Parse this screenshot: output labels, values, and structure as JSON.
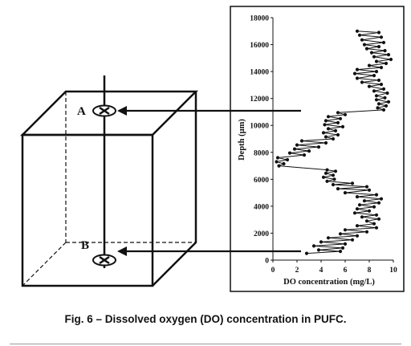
{
  "caption": "Fig. 6 – Dissolved oxygen (DO) concentration in PUFC.",
  "diagram": {
    "point_a": "A",
    "point_b": "B"
  },
  "chart_data": {
    "type": "line",
    "title": "",
    "xlabel": "DO concentration (mg/L)",
    "ylabel": "Depth (µm)",
    "xlim": [
      0,
      10
    ],
    "ylim": [
      0,
      18000
    ],
    "x_ticks": [
      0,
      2,
      4,
      6,
      8,
      10
    ],
    "y_ticks": [
      0,
      2000,
      4000,
      6000,
      8000,
      10000,
      12000,
      14000,
      16000,
      18000
    ],
    "grid": false,
    "legend": "none",
    "series": [
      {
        "points": [
          [
            7.0,
            17000
          ],
          [
            8.8,
            16900
          ],
          [
            7.2,
            16700
          ],
          [
            9.0,
            16550
          ],
          [
            7.4,
            16350
          ],
          [
            9.2,
            16150
          ],
          [
            7.6,
            16000
          ],
          [
            8.8,
            15850
          ],
          [
            7.8,
            15700
          ],
          [
            9.3,
            15550
          ],
          [
            8.2,
            15400
          ],
          [
            9.6,
            15250
          ],
          [
            8.4,
            15100
          ],
          [
            9.8,
            14900
          ],
          [
            8.6,
            14750
          ],
          [
            9.4,
            14600
          ],
          [
            8.0,
            14450
          ],
          [
            9.0,
            14300
          ],
          [
            7.0,
            14150
          ],
          [
            8.6,
            14000
          ],
          [
            6.8,
            13850
          ],
          [
            8.4,
            13700
          ],
          [
            7.0,
            13500
          ],
          [
            8.8,
            13350
          ],
          [
            7.4,
            13200
          ],
          [
            9.0,
            13050
          ],
          [
            8.0,
            12900
          ],
          [
            9.2,
            12700
          ],
          [
            8.4,
            12550
          ],
          [
            9.5,
            12400
          ],
          [
            8.6,
            12200
          ],
          [
            9.3,
            12050
          ],
          [
            8.6,
            11900
          ],
          [
            9.6,
            11750
          ],
          [
            8.8,
            11600
          ],
          [
            9.4,
            11450
          ],
          [
            8.7,
            11300
          ],
          [
            9.2,
            11150
          ],
          [
            5.4,
            10950
          ],
          [
            6.0,
            10800
          ],
          [
            4.6,
            10650
          ],
          [
            5.6,
            10500
          ],
          [
            4.4,
            10350
          ],
          [
            5.4,
            10200
          ],
          [
            4.3,
            10050
          ],
          [
            5.8,
            9900
          ],
          [
            4.6,
            9750
          ],
          [
            5.2,
            9600
          ],
          [
            4.2,
            9450
          ],
          [
            5.4,
            9300
          ],
          [
            4.4,
            9150
          ],
          [
            5.0,
            9000
          ],
          [
            2.4,
            8850
          ],
          [
            4.4,
            8700
          ],
          [
            2.0,
            8550
          ],
          [
            3.8,
            8400
          ],
          [
            1.8,
            8250
          ],
          [
            3.0,
            8100
          ],
          [
            1.4,
            7950
          ],
          [
            2.6,
            7800
          ],
          [
            0.4,
            7600
          ],
          [
            1.2,
            7450
          ],
          [
            0.3,
            7300
          ],
          [
            0.9,
            7150
          ],
          [
            0.5,
            7000
          ],
          [
            4.5,
            6700
          ],
          [
            5.2,
            6600
          ],
          [
            4.4,
            6450
          ],
          [
            5.0,
            6300
          ],
          [
            4.2,
            6150
          ],
          [
            5.1,
            6000
          ],
          [
            4.5,
            5850
          ],
          [
            6.6,
            5700
          ],
          [
            5.0,
            5600
          ],
          [
            7.8,
            5450
          ],
          [
            5.4,
            5300
          ],
          [
            8.0,
            5200
          ],
          [
            6.0,
            5000
          ],
          [
            8.6,
            4850
          ],
          [
            7.0,
            4700
          ],
          [
            9.0,
            4550
          ],
          [
            7.6,
            4400
          ],
          [
            8.8,
            4250
          ],
          [
            7.2,
            4100
          ],
          [
            8.4,
            3950
          ],
          [
            7.0,
            3800
          ],
          [
            8.0,
            3650
          ],
          [
            6.8,
            3500
          ],
          [
            8.6,
            3350
          ],
          [
            7.4,
            3200
          ],
          [
            8.8,
            3050
          ],
          [
            7.8,
            2900
          ],
          [
            8.4,
            2700
          ],
          [
            7.0,
            2550
          ],
          [
            8.6,
            2400
          ],
          [
            6.0,
            2250
          ],
          [
            7.8,
            2100
          ],
          [
            5.6,
            1950
          ],
          [
            7.0,
            1800
          ],
          [
            4.6,
            1650
          ],
          [
            6.6,
            1500
          ],
          [
            4.0,
            1350
          ],
          [
            6.0,
            1200
          ],
          [
            3.4,
            1050
          ],
          [
            5.8,
            900
          ],
          [
            3.8,
            750
          ],
          [
            5.6,
            650
          ],
          [
            2.8,
            500
          ]
        ]
      }
    ]
  }
}
